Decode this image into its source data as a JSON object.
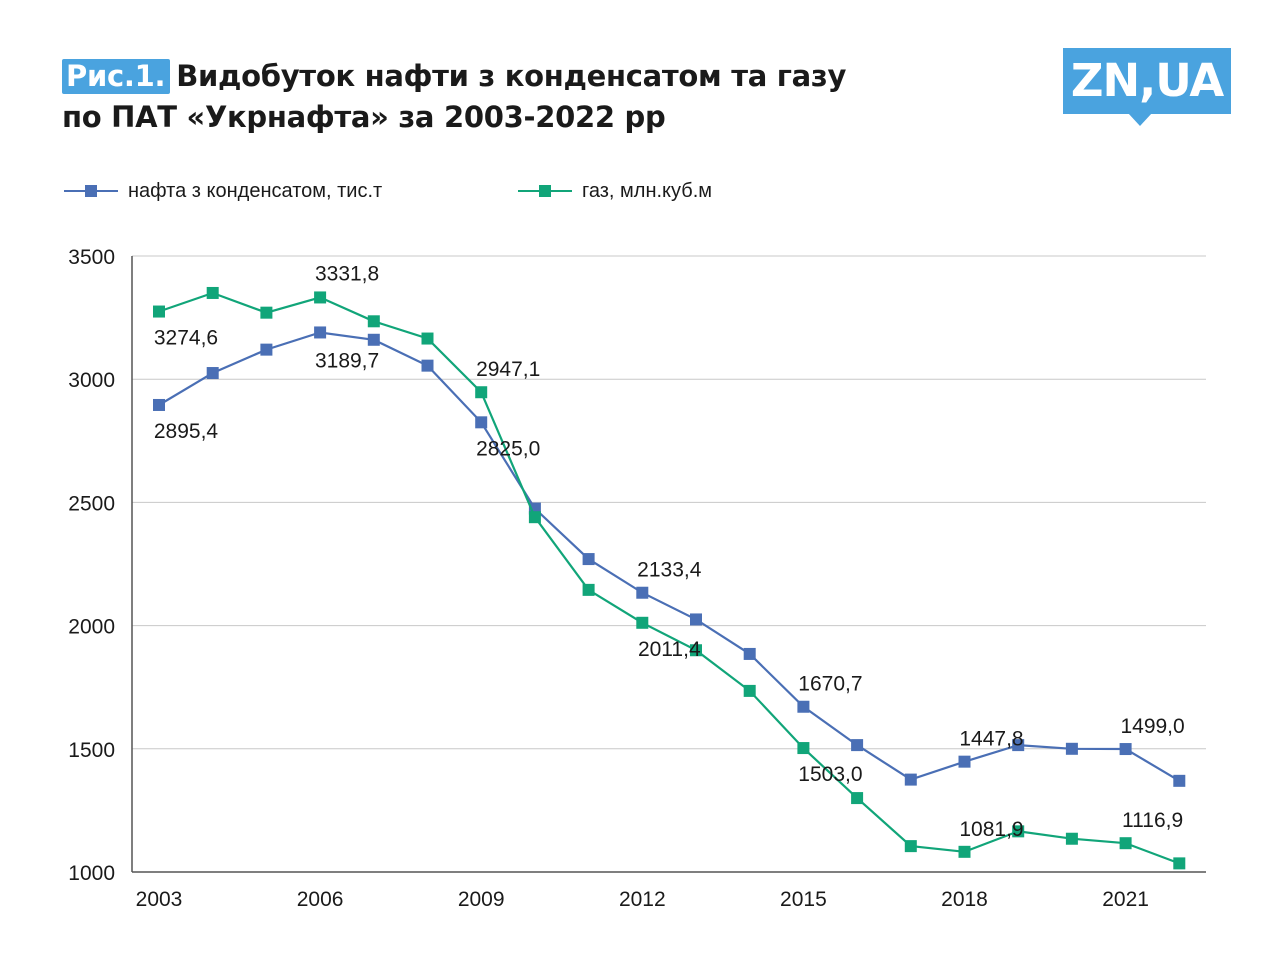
{
  "title": {
    "figure_label": "Рис.1.",
    "line1": "Видобуток нафти з конденсатом та газу",
    "line2": "по ПАТ «Укрнафта» за 2003-2022 рр"
  },
  "logo": {
    "text": "ZN,UA"
  },
  "colors": {
    "oil": "#4a6fb5",
    "gas": "#11a579",
    "accent": "#4aa3df",
    "grid": "#c8c8c8"
  },
  "chart_data": {
    "type": "line",
    "title": "Видобуток нафти з конденсатом та газу по ПАТ «Укрнафта» за 2003-2022 рр",
    "xlabel": "",
    "ylabel": "",
    "x": [
      2003,
      2004,
      2005,
      2006,
      2007,
      2008,
      2009,
      2010,
      2011,
      2012,
      2013,
      2014,
      2015,
      2016,
      2017,
      2018,
      2019,
      2020,
      2021,
      2022
    ],
    "x_ticks": [
      "2003",
      "2006",
      "2009",
      "2012",
      "2015",
      "2018",
      "2021"
    ],
    "y_ticks": [
      "1000",
      "1500",
      "2000",
      "2500",
      "3000",
      "3500"
    ],
    "ylim": [
      1000,
      3500
    ],
    "grid": true,
    "legend_position": "top-left",
    "series": [
      {
        "name": "нафта з конденсатом, тис.т",
        "key": "oil",
        "values": [
          2895.4,
          3025,
          3120,
          3189.7,
          3160,
          3055,
          2825.0,
          2475,
          2270,
          2133.4,
          2025,
          1885,
          1670.7,
          1515,
          1375,
          1447.8,
          1515,
          1500,
          1499.0,
          1370
        ]
      },
      {
        "name": "газ, млн.куб.м",
        "key": "gas",
        "values": [
          3274.6,
          3350,
          3270,
          3331.8,
          3235,
          3165,
          2947.1,
          2440,
          2145,
          2011.4,
          1900,
          1735,
          1503.0,
          1300,
          1105,
          1081.9,
          1165,
          1135,
          1116.9,
          1035
        ]
      }
    ],
    "data_labels": [
      {
        "series": "oil",
        "year": 2003,
        "text": "2895,4"
      },
      {
        "series": "oil",
        "year": 2006,
        "text": "3189,7"
      },
      {
        "series": "oil",
        "year": 2009,
        "text": "2825,0"
      },
      {
        "series": "oil",
        "year": 2012,
        "text": "2133,4"
      },
      {
        "series": "oil",
        "year": 2015,
        "text": "1670,7"
      },
      {
        "series": "oil",
        "year": 2018,
        "text": "1447,8"
      },
      {
        "series": "oil",
        "year": 2021,
        "text": "1499,0"
      },
      {
        "series": "gas",
        "year": 2003,
        "text": "3274,6"
      },
      {
        "series": "gas",
        "year": 2006,
        "text": "3331,8"
      },
      {
        "series": "gas",
        "year": 2009,
        "text": "2947,1"
      },
      {
        "series": "gas",
        "year": 2012,
        "text": "2011,4"
      },
      {
        "series": "gas",
        "year": 2015,
        "text": "1503,0"
      },
      {
        "series": "gas",
        "year": 2018,
        "text": "1081,9"
      },
      {
        "series": "gas",
        "year": 2021,
        "text": "1116,9"
      }
    ]
  }
}
